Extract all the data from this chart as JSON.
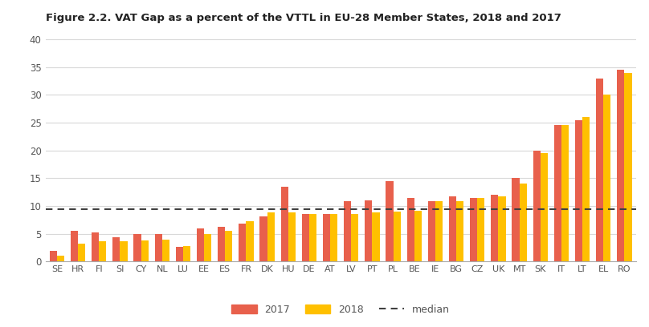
{
  "title": "Figure 2.2. VAT Gap as a percent of the VTTL in EU-28 Member States, 2018 and 2017",
  "categories": [
    "SE",
    "HR",
    "FI",
    "SI",
    "CY",
    "NL",
    "LU",
    "EE",
    "ES",
    "FR",
    "DK",
    "HU",
    "DE",
    "AT",
    "LV",
    "PT",
    "PL",
    "BE",
    "IE",
    "BG",
    "CZ",
    "UK",
    "MT",
    "SK",
    "IT",
    "LT",
    "EL",
    "RO"
  ],
  "values_2017": [
    2.0,
    5.5,
    5.2,
    4.4,
    5.0,
    5.0,
    2.7,
    6.0,
    6.3,
    6.8,
    8.2,
    13.5,
    8.5,
    8.5,
    10.8,
    11.0,
    14.5,
    11.5,
    10.8,
    11.8,
    11.5,
    12.0,
    15.0,
    20.0,
    24.5,
    25.5,
    33.0,
    34.5
  ],
  "values_2018": [
    1.0,
    3.3,
    3.6,
    3.7,
    3.8,
    4.0,
    2.8,
    5.0,
    5.5,
    7.2,
    8.8,
    8.8,
    8.5,
    8.5,
    8.5,
    8.8,
    9.0,
    9.2,
    10.8,
    10.8,
    11.5,
    11.8,
    14.0,
    19.5,
    24.5,
    26.0,
    30.0,
    34.0
  ],
  "median": 9.5,
  "color_2017": "#e8604c",
  "color_2018": "#ffc000",
  "median_color": "#404040",
  "ylim": [
    0,
    40
  ],
  "yticks": [
    0,
    5,
    10,
    15,
    20,
    25,
    30,
    35,
    40
  ],
  "legend_labels": [
    "2017",
    "2018",
    "median"
  ],
  "bar_width": 0.35,
  "figsize": [
    8.08,
    4.08
  ],
  "dpi": 100
}
